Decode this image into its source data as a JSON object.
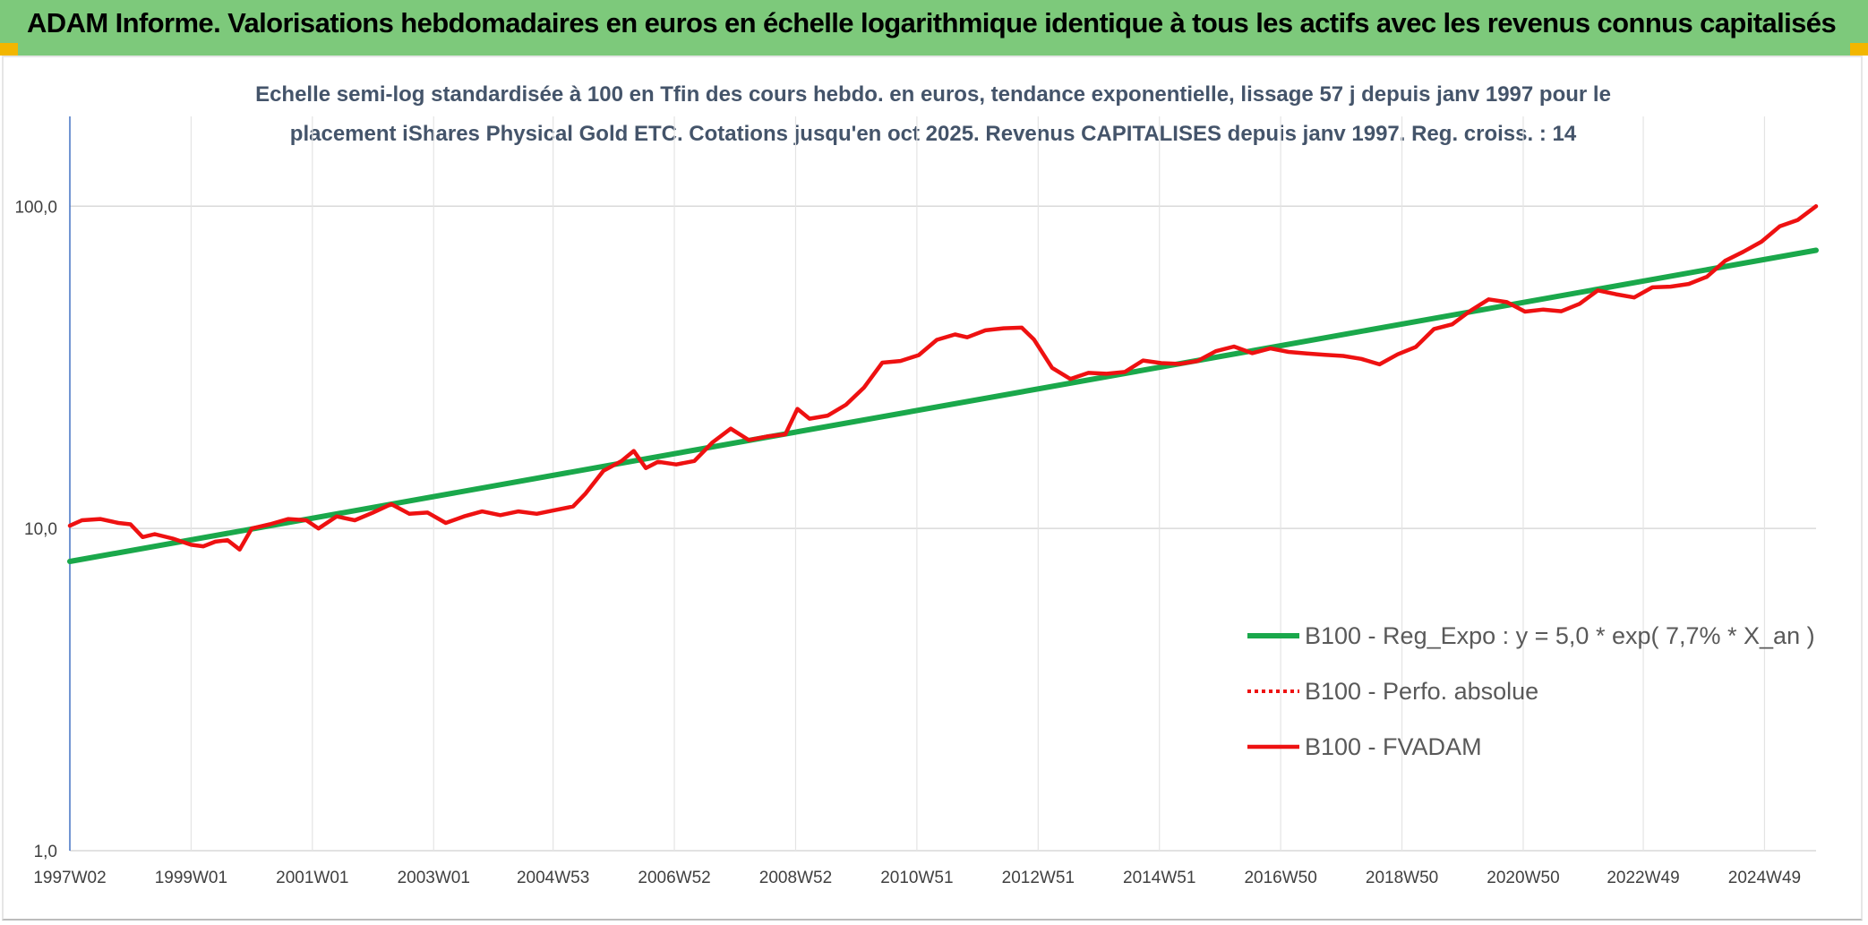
{
  "header": {
    "title": "ADAM Informe. Valorisations hebdomadaires en euros en échelle logarithmique identique à tous les actifs avec les revenus connus capitalisés"
  },
  "colors": {
    "header_bg": "#7dc97b",
    "corner_accent": "#f2b600",
    "trend_line": "#1aa84b",
    "performance_line": "#ee1111",
    "fvadam_line": "#ee1111",
    "subtitle_text": "#44546a"
  },
  "chart_data": {
    "type": "line",
    "title_line1": "Echelle semi-log standardisée à 100 en Tfin des cours hebdo. en euros, tendance exponentielle, lissage 57 j depuis janv 1997 pour le",
    "title_line2": "placement iShares Physical Gold ETC. Cotations jusqu'en oct 2025. Revenus CAPITALISES depuis janv 1997. Reg. croiss. : 14",
    "y_scale": "log",
    "ylim": [
      1,
      100
    ],
    "y_max_plotted": 190,
    "y_ticks": [
      {
        "value": 100,
        "label": "100,0"
      },
      {
        "value": 10,
        "label": "10,0"
      },
      {
        "value": 1,
        "label": "1,0"
      }
    ],
    "xlim": [
      1997.0,
      2025.8
    ],
    "x_ticks": [
      {
        "value": 1997.0,
        "label": "1997W02"
      },
      {
        "value": 1999.0,
        "label": "1999W01"
      },
      {
        "value": 2001.0,
        "label": "2001W01"
      },
      {
        "value": 2003.0,
        "label": "2003W01"
      },
      {
        "value": 2004.97,
        "label": "2004W53"
      },
      {
        "value": 2006.97,
        "label": "2006W52"
      },
      {
        "value": 2008.97,
        "label": "2008W52"
      },
      {
        "value": 2010.97,
        "label": "2010W51"
      },
      {
        "value": 2012.97,
        "label": "2012W51"
      },
      {
        "value": 2014.97,
        "label": "2014W51"
      },
      {
        "value": 2016.97,
        "label": "2016W50"
      },
      {
        "value": 2018.97,
        "label": "2018W50"
      },
      {
        "value": 2020.97,
        "label": "2020W50"
      },
      {
        "value": 2022.95,
        "label": "2022W49"
      },
      {
        "value": 2024.95,
        "label": "2024W49"
      }
    ],
    "vertical_gridlines": true,
    "horizontal_gridlines": true,
    "legend_position": "right",
    "series": [
      {
        "name": "B100 - Reg_Expo : y = 5,0 * exp( 7,7% *  X_an )",
        "style": "solid-green",
        "x": [
          1997.0,
          2025.8
        ],
        "y": [
          7.9,
          73.0
        ]
      },
      {
        "name": "B100 - Perfo. absolue",
        "style": "dotted-red",
        "x": [],
        "y": []
      },
      {
        "name": "B100 - FVADAM",
        "style": "solid-red",
        "x": [
          1997.0,
          1997.2,
          1997.5,
          1997.8,
          1998.0,
          1998.2,
          1998.4,
          1998.7,
          1999.0,
          1999.2,
          1999.4,
          1999.6,
          1999.8,
          2000.0,
          2000.3,
          2000.6,
          2000.9,
          2001.1,
          2001.4,
          2001.7,
          2002.0,
          2002.3,
          2002.6,
          2002.9,
          2003.2,
          2003.5,
          2003.8,
          2004.1,
          2004.4,
          2004.7,
          2005.0,
          2005.3,
          2005.5,
          2005.8,
          2006.1,
          2006.3,
          2006.5,
          2006.7,
          2007.0,
          2007.3,
          2007.6,
          2007.9,
          2008.2,
          2008.5,
          2008.8,
          2009.0,
          2009.2,
          2009.5,
          2009.8,
          2010.1,
          2010.4,
          2010.7,
          2011.0,
          2011.3,
          2011.6,
          2011.8,
          2012.1,
          2012.4,
          2012.7,
          2012.9,
          2013.2,
          2013.5,
          2013.8,
          2014.1,
          2014.4,
          2014.7,
          2015.0,
          2015.3,
          2015.6,
          2015.9,
          2016.2,
          2016.5,
          2016.8,
          2017.1,
          2017.4,
          2017.7,
          2018.0,
          2018.3,
          2018.6,
          2018.9,
          2019.2,
          2019.5,
          2019.8,
          2020.1,
          2020.4,
          2020.7,
          2021.0,
          2021.3,
          2021.6,
          2021.9,
          2022.2,
          2022.5,
          2022.8,
          2023.1,
          2023.4,
          2023.7,
          2024.0,
          2024.3,
          2024.6,
          2024.9,
          2025.2,
          2025.5,
          2025.8
        ],
        "y": [
          10.2,
          10.6,
          10.7,
          10.4,
          10.3,
          9.4,
          9.6,
          9.3,
          8.9,
          8.8,
          9.1,
          9.2,
          8.6,
          10.0,
          10.3,
          10.7,
          10.6,
          10.0,
          10.9,
          10.6,
          11.2,
          11.9,
          11.1,
          11.2,
          10.4,
          10.9,
          11.3,
          11.0,
          11.3,
          11.1,
          11.4,
          11.7,
          12.8,
          15.1,
          16.2,
          17.4,
          15.4,
          16.1,
          15.8,
          16.2,
          18.5,
          20.4,
          18.8,
          19.3,
          19.6,
          23.5,
          21.9,
          22.4,
          24.2,
          27.4,
          32.7,
          33.1,
          34.5,
          38.5,
          40.0,
          39.2,
          41.2,
          41.8,
          42.0,
          38.6,
          31.5,
          29.1,
          30.4,
          30.2,
          30.6,
          33.2,
          32.6,
          32.4,
          33.1,
          35.5,
          36.7,
          35.0,
          36.2,
          35.3,
          34.9,
          34.6,
          34.3,
          33.6,
          32.3,
          34.7,
          36.6,
          41.6,
          43.0,
          47.4,
          51.4,
          50.4,
          47.1,
          47.8,
          47.2,
          49.8,
          54.8,
          53.3,
          52.1,
          56.0,
          56.3,
          57.4,
          60.4,
          67.7,
          72.2,
          77.6,
          86.6,
          90.7,
          100.0
        ]
      }
    ]
  }
}
